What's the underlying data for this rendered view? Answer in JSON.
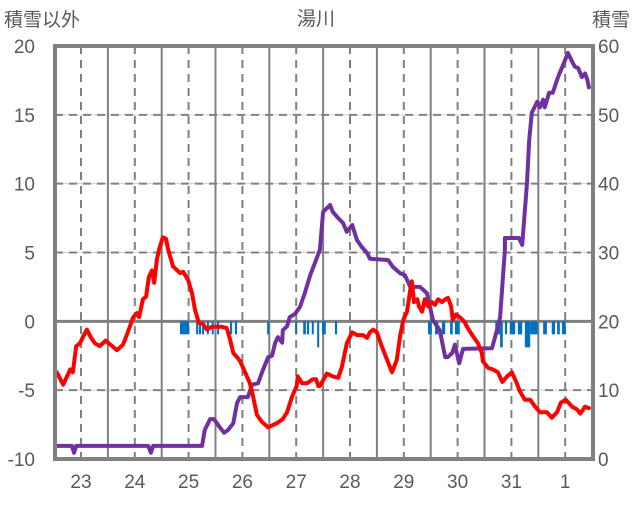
{
  "chart_data": {
    "type": "line",
    "title": "湯川",
    "ylabel_left": "積雪以外",
    "ylabel_right": "積雪",
    "x_unit": "days after 23rd 00:00",
    "xlim": [
      -0.48,
      9.52
    ],
    "x_tick_labels": [
      {
        "t": 0,
        "label": "23"
      },
      {
        "t": 1,
        "label": "24"
      },
      {
        "t": 2,
        "label": "25"
      },
      {
        "t": 3,
        "label": "26"
      },
      {
        "t": 4,
        "label": "27"
      },
      {
        "t": 5,
        "label": "28"
      },
      {
        "t": 6,
        "label": "29"
      },
      {
        "t": 7,
        "label": "30"
      },
      {
        "t": 8,
        "label": "31"
      },
      {
        "t": 9,
        "label": "1"
      }
    ],
    "ylim_left": [
      -10,
      20
    ],
    "y_ticks_left": [
      "20",
      "15",
      "10",
      "5",
      "0",
      "-5",
      "-10"
    ],
    "ylim_right": [
      0,
      60
    ],
    "y_ticks_right": [
      "60",
      "50",
      "40",
      "30",
      "20",
      "10",
      "0"
    ],
    "grid": true,
    "colors": {
      "temperature": "#ff0000",
      "snow_depth": "#7030a0",
      "bars": "#0070c0",
      "axis": "#808080",
      "text": "#595959"
    },
    "series": [
      {
        "name": "temperature",
        "axis": "left",
        "color": "#ff0000",
        "points": [
          [
            -0.48,
            -3.7
          ],
          [
            -0.45,
            -3.7
          ],
          [
            -0.33,
            -4.6
          ],
          [
            -0.26,
            -4.0
          ],
          [
            -0.2,
            -3.5
          ],
          [
            -0.15,
            -3.7
          ],
          [
            -0.09,
            -1.8
          ],
          [
            -0.02,
            -1.6
          ],
          [
            0.04,
            -1.1
          ],
          [
            0.11,
            -0.6
          ],
          [
            0.19,
            -1.2
          ],
          [
            0.26,
            -1.6
          ],
          [
            0.35,
            -1.8
          ],
          [
            0.46,
            -1.4
          ],
          [
            0.58,
            -1.8
          ],
          [
            0.67,
            -2.1
          ],
          [
            0.78,
            -1.7
          ],
          [
            0.87,
            -0.8
          ],
          [
            0.97,
            0.3
          ],
          [
            1.04,
            0.6
          ],
          [
            1.08,
            0.3
          ],
          [
            1.15,
            1.6
          ],
          [
            1.21,
            1.8
          ],
          [
            1.26,
            3.2
          ],
          [
            1.32,
            3.7
          ],
          [
            1.36,
            2.8
          ],
          [
            1.41,
            4.5
          ],
          [
            1.45,
            5.2
          ],
          [
            1.52,
            6.1
          ],
          [
            1.58,
            6.0
          ],
          [
            1.62,
            5.2
          ],
          [
            1.71,
            4.0
          ],
          [
            1.84,
            3.5
          ],
          [
            1.9,
            3.6
          ],
          [
            1.99,
            3.0
          ],
          [
            2.06,
            2.1
          ],
          [
            2.12,
            0.8
          ],
          [
            2.19,
            -0.1
          ],
          [
            2.27,
            -0.2
          ],
          [
            2.34,
            -0.6
          ],
          [
            2.43,
            -0.4
          ],
          [
            2.53,
            -0.4
          ],
          [
            2.62,
            -0.4
          ],
          [
            2.71,
            -0.5
          ],
          [
            2.77,
            -1.3
          ],
          [
            2.83,
            -2.3
          ],
          [
            2.9,
            -2.6
          ],
          [
            2.96,
            -2.9
          ],
          [
            3.05,
            -3.7
          ],
          [
            3.14,
            -4.5
          ],
          [
            3.2,
            -5.5
          ],
          [
            3.27,
            -6.8
          ],
          [
            3.36,
            -7.3
          ],
          [
            3.48,
            -7.7
          ],
          [
            3.64,
            -7.4
          ],
          [
            3.75,
            -7.1
          ],
          [
            3.83,
            -6.6
          ],
          [
            3.92,
            -5.5
          ],
          [
            4.01,
            -4.7
          ],
          [
            4.03,
            -4.0
          ],
          [
            4.11,
            -4.5
          ],
          [
            4.2,
            -4.5
          ],
          [
            4.31,
            -4.2
          ],
          [
            4.37,
            -4.2
          ],
          [
            4.41,
            -4.7
          ],
          [
            4.44,
            -4.7
          ],
          [
            4.57,
            -3.8
          ],
          [
            4.68,
            -4.0
          ],
          [
            4.78,
            -4.1
          ],
          [
            4.85,
            -3.3
          ],
          [
            4.94,
            -1.6
          ],
          [
            5.04,
            -0.8
          ],
          [
            5.13,
            -1.0
          ],
          [
            5.24,
            -1.0
          ],
          [
            5.32,
            -1.2
          ],
          [
            5.37,
            -0.8
          ],
          [
            5.43,
            -0.6
          ],
          [
            5.5,
            -0.8
          ],
          [
            5.59,
            -1.8
          ],
          [
            5.69,
            -2.8
          ],
          [
            5.78,
            -3.7
          ],
          [
            5.87,
            -2.8
          ],
          [
            5.93,
            -1.1
          ],
          [
            5.99,
            0.1
          ],
          [
            6.06,
            0.7
          ],
          [
            6.12,
            2.3
          ],
          [
            6.15,
            2.9
          ],
          [
            6.19,
            1.4
          ],
          [
            6.25,
            1.6
          ],
          [
            6.28,
            1.1
          ],
          [
            6.34,
            0.7
          ],
          [
            6.39,
            1.6
          ],
          [
            6.45,
            1.1
          ],
          [
            6.52,
            1.4
          ],
          [
            6.58,
            1.2
          ],
          [
            6.64,
            1.6
          ],
          [
            6.71,
            1.4
          ],
          [
            6.77,
            1.6
          ],
          [
            6.82,
            1.7
          ],
          [
            6.88,
            1.1
          ],
          [
            6.91,
            0.1
          ],
          [
            6.97,
            0.5
          ],
          [
            7.04,
            0.3
          ],
          [
            7.12,
            0.0
          ],
          [
            7.19,
            -0.5
          ],
          [
            7.29,
            -1.1
          ],
          [
            7.38,
            -1.6
          ],
          [
            7.45,
            -2.3
          ],
          [
            7.47,
            -2.9
          ],
          [
            7.57,
            -3.4
          ],
          [
            7.66,
            -3.5
          ],
          [
            7.75,
            -3.7
          ],
          [
            7.83,
            -4.4
          ],
          [
            7.92,
            -4.0
          ],
          [
            8.01,
            -3.7
          ],
          [
            8.1,
            -4.5
          ],
          [
            8.16,
            -5.1
          ],
          [
            8.25,
            -5.7
          ],
          [
            8.35,
            -5.7
          ],
          [
            8.44,
            -6.2
          ],
          [
            8.53,
            -6.6
          ],
          [
            8.66,
            -6.6
          ],
          [
            8.75,
            -7.0
          ],
          [
            8.85,
            -6.6
          ],
          [
            8.92,
            -5.9
          ],
          [
            9.01,
            -5.7
          ],
          [
            9.13,
            -6.2
          ],
          [
            9.22,
            -6.4
          ],
          [
            9.28,
            -6.7
          ],
          [
            9.37,
            -6.2
          ],
          [
            9.44,
            -6.3
          ]
        ]
      },
      {
        "name": "snow_depth",
        "axis": "right",
        "color": "#7030a0",
        "points": [
          [
            -0.48,
            1.9
          ],
          [
            -0.17,
            1.9
          ],
          [
            -0.13,
            0.9
          ],
          [
            -0.09,
            1.9
          ],
          [
            1.25,
            1.9
          ],
          [
            1.3,
            0.9
          ],
          [
            1.34,
            1.9
          ],
          [
            2.25,
            1.9
          ],
          [
            2.3,
            4.2
          ],
          [
            2.4,
            5.8
          ],
          [
            2.47,
            5.8
          ],
          [
            2.58,
            4.6
          ],
          [
            2.66,
            3.8
          ],
          [
            2.73,
            4.2
          ],
          [
            2.83,
            5.2
          ],
          [
            2.9,
            8.1
          ],
          [
            2.96,
            9.0
          ],
          [
            3.1,
            9.0
          ],
          [
            3.18,
            10.8
          ],
          [
            3.29,
            11.0
          ],
          [
            3.38,
            12.9
          ],
          [
            3.48,
            14.8
          ],
          [
            3.55,
            15.0
          ],
          [
            3.61,
            16.9
          ],
          [
            3.66,
            17.7
          ],
          [
            3.74,
            16.9
          ],
          [
            3.75,
            18.7
          ],
          [
            3.83,
            19.3
          ],
          [
            3.88,
            20.6
          ],
          [
            3.98,
            21.1
          ],
          [
            4.07,
            22.1
          ],
          [
            4.16,
            24.1
          ],
          [
            4.26,
            26.7
          ],
          [
            4.35,
            28.5
          ],
          [
            4.44,
            30.4
          ],
          [
            4.5,
            35.9
          ],
          [
            4.63,
            36.9
          ],
          [
            4.68,
            35.9
          ],
          [
            4.78,
            35.0
          ],
          [
            4.87,
            34.3
          ],
          [
            4.94,
            33.0
          ],
          [
            5.04,
            34.0
          ],
          [
            5.13,
            31.8
          ],
          [
            5.22,
            30.8
          ],
          [
            5.32,
            29.9
          ],
          [
            5.37,
            29.1
          ],
          [
            5.71,
            28.9
          ],
          [
            5.8,
            27.9
          ],
          [
            5.93,
            27.0
          ],
          [
            6.02,
            26.7
          ],
          [
            6.12,
            25.0
          ],
          [
            6.3,
            25.0
          ],
          [
            6.43,
            24.1
          ],
          [
            6.54,
            20.2
          ],
          [
            6.67,
            18.7
          ],
          [
            6.77,
            14.8
          ],
          [
            6.82,
            14.8
          ],
          [
            6.9,
            15.4
          ],
          [
            6.95,
            16.6
          ],
          [
            7.03,
            13.9
          ],
          [
            7.1,
            16.0
          ],
          [
            7.64,
            16.1
          ],
          [
            7.73,
            18.7
          ],
          [
            7.79,
            20.6
          ],
          [
            7.88,
            30.4
          ],
          [
            7.88,
            32.1
          ],
          [
            8.14,
            32.1
          ],
          [
            8.2,
            31.1
          ],
          [
            8.29,
            40.1
          ],
          [
            8.33,
            46.3
          ],
          [
            8.38,
            50.3
          ],
          [
            8.48,
            51.9
          ],
          [
            8.53,
            51.1
          ],
          [
            8.59,
            52.2
          ],
          [
            8.62,
            51.1
          ],
          [
            8.7,
            53.2
          ],
          [
            8.77,
            53.2
          ],
          [
            8.85,
            55.1
          ],
          [
            8.9,
            56.1
          ],
          [
            9.0,
            58.0
          ],
          [
            9.05,
            59.0
          ],
          [
            9.13,
            57.7
          ],
          [
            9.18,
            57.0
          ],
          [
            9.24,
            56.8
          ],
          [
            9.31,
            55.5
          ],
          [
            9.37,
            56.0
          ],
          [
            9.41,
            55.1
          ],
          [
            9.44,
            54.0
          ]
        ]
      }
    ],
    "bars": {
      "name": "precipitation",
      "color": "#0070c0",
      "note": "hanging down from the 0 line",
      "items": [
        [
          1.84,
          2.01,
          1
        ],
        [
          2.14,
          2.16,
          1
        ],
        [
          2.19,
          2.23,
          1
        ],
        [
          2.25,
          2.27,
          1
        ],
        [
          2.34,
          2.36,
          1
        ],
        [
          2.43,
          2.45,
          1
        ],
        [
          2.53,
          2.55,
          1
        ],
        [
          2.77,
          2.81,
          1
        ],
        [
          2.86,
          2.9,
          1
        ],
        [
          3.46,
          3.49,
          1
        ],
        [
          3.98,
          4.01,
          1
        ],
        [
          4.13,
          4.18,
          1
        ],
        [
          4.2,
          4.24,
          1
        ],
        [
          4.29,
          4.31,
          1
        ],
        [
          4.39,
          4.42,
          2
        ],
        [
          4.48,
          4.55,
          1
        ],
        [
          4.72,
          4.76,
          1
        ],
        [
          6.45,
          6.52,
          1
        ],
        [
          6.58,
          6.64,
          1
        ],
        [
          6.71,
          6.77,
          1
        ],
        [
          6.86,
          6.91,
          1
        ],
        [
          6.95,
          7.04,
          1
        ],
        [
          7.7,
          7.79,
          1
        ],
        [
          7.79,
          7.84,
          2
        ],
        [
          7.88,
          7.92,
          1
        ],
        [
          7.97,
          8.07,
          1
        ],
        [
          8.12,
          8.2,
          1
        ],
        [
          8.25,
          8.35,
          2
        ],
        [
          8.35,
          8.49,
          1
        ],
        [
          8.59,
          8.66,
          1
        ],
        [
          8.75,
          8.81,
          1
        ],
        [
          8.85,
          8.9,
          1
        ],
        [
          8.94,
          9.01,
          1
        ]
      ]
    }
  }
}
